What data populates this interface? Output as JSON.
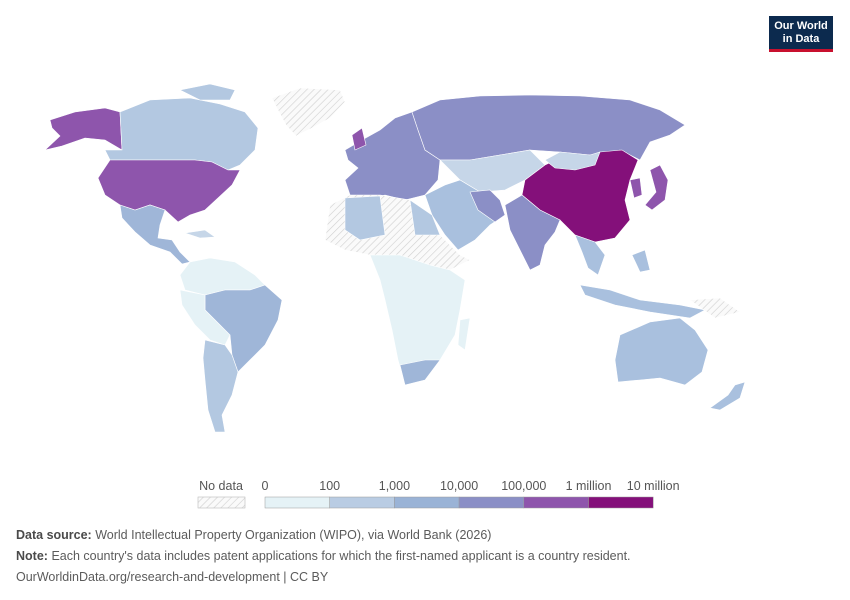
{
  "logo": {
    "line1": "Our World",
    "line2": "in Data"
  },
  "legend": {
    "no_data": "No data",
    "ticks": [
      "0",
      "100",
      "1,000",
      "10,000",
      "100,000",
      "1 million",
      "10 million"
    ],
    "colors": [
      "#e5f2f6",
      "#b9cce3",
      "#9ab3d6",
      "#8b8fc6",
      "#8e55ac",
      "#84107a"
    ]
  },
  "footer": {
    "source_label": "Data source:",
    "source": "World Intellectual Property Organization (WIPO), via World Bank (2026)",
    "note_label": "Note:",
    "note": "Each country's data includes patent applications for which the first-named applicant is a country resident.",
    "link": "OurWorldinData.org/research-and-development | CC BY"
  }
}
